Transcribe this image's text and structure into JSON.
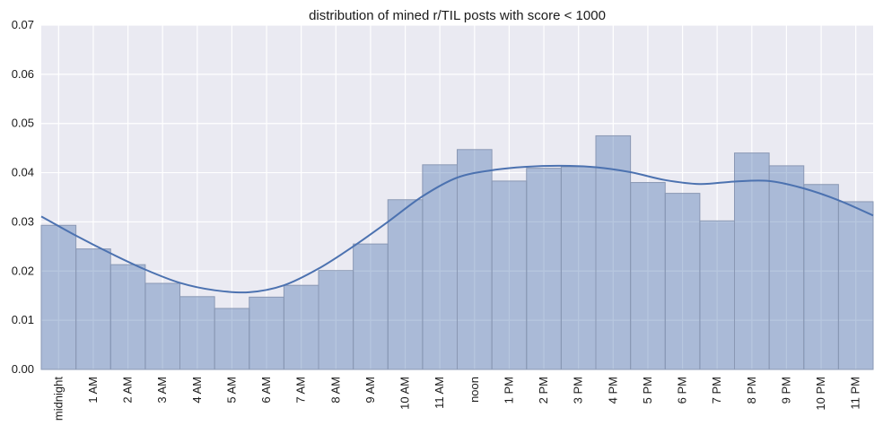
{
  "chart_data": {
    "type": "bar",
    "title": "distribution of mined r/TIL posts with score < 1000",
    "xlabel": "",
    "ylabel": "",
    "categories": [
      "midnight",
      "1 AM",
      "2 AM",
      "3 AM",
      "4 AM",
      "5 AM",
      "6 AM",
      "7 AM",
      "8 AM",
      "9 AM",
      "10 AM",
      "11 AM",
      "noon",
      "1 PM",
      "2 PM",
      "3 PM",
      "4 PM",
      "5 PM",
      "6 PM",
      "7 PM",
      "8 PM",
      "9 PM",
      "10 PM",
      "11 PM"
    ],
    "values": [
      0.0293,
      0.0245,
      0.0213,
      0.0175,
      0.0148,
      0.0124,
      0.0147,
      0.0171,
      0.0201,
      0.0255,
      0.0345,
      0.0416,
      0.0447,
      0.0383,
      0.0409,
      0.0412,
      0.0475,
      0.038,
      0.0358,
      0.0302,
      0.044,
      0.0414,
      0.0376,
      0.0341
    ],
    "kde": {
      "x": [
        -0.5,
        0.5,
        1.5,
        2.5,
        3.5,
        4.5,
        5.5,
        6.5,
        7.5,
        8.5,
        9.5,
        10.5,
        11.5,
        12.5,
        13.5,
        14.5,
        15.5,
        16.5,
        17.5,
        18.5,
        19.5,
        20.5,
        21.5,
        22.5,
        23.5
      ],
      "y": [
        0.0311,
        0.0272,
        0.0236,
        0.0203,
        0.0176,
        0.0161,
        0.0157,
        0.0171,
        0.0205,
        0.025,
        0.03,
        0.0352,
        0.039,
        0.0405,
        0.0412,
        0.0414,
        0.0411,
        0.0401,
        0.0385,
        0.0377,
        0.0382,
        0.0383,
        0.0368,
        0.0344,
        0.0313
      ]
    },
    "yticks": [
      "0.00",
      "0.01",
      "0.02",
      "0.03",
      "0.04",
      "0.05",
      "0.06",
      "0.07"
    ],
    "ylim": [
      0,
      0.07
    ],
    "xlim": [
      -0.5,
      23.5
    ],
    "grid": true,
    "legend": "none",
    "colors": {
      "plot_background": "#EAEAF2",
      "grid": "#FFFFFF",
      "bar_fill": "#4C72B0",
      "bar_edge": "#8A98B4",
      "line": "#4C72B0"
    }
  }
}
